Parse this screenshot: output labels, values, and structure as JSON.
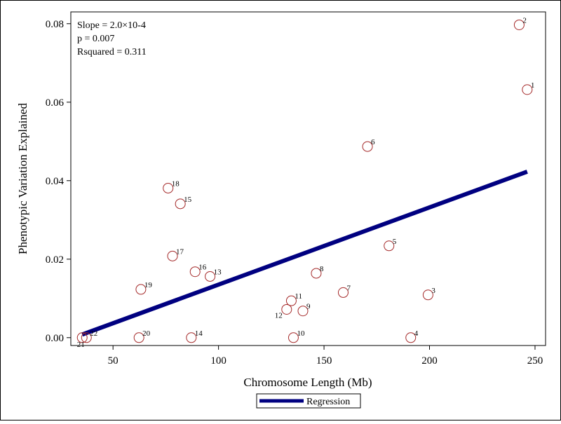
{
  "chart_data": {
    "type": "scatter",
    "xlabel": "Chromosome Length (Mb)",
    "ylabel": "Phenotypic Variation Explained",
    "xlim": [
      30,
      255
    ],
    "ylim": [
      -0.002,
      0.083
    ],
    "xticks": [
      50,
      100,
      150,
      200,
      250
    ],
    "yticks": [
      0.0,
      0.02,
      0.04,
      0.06,
      0.08
    ],
    "ytick_labels": [
      "0.00",
      "0.02",
      "0.04",
      "0.06",
      "0.08"
    ],
    "grid": false,
    "stats_lines": [
      "Slope = 2.0×10-4",
      "p = 0.007",
      "Rsquared = 0.311"
    ],
    "legend": {
      "position": "bottom-center",
      "entries": [
        "Regression"
      ]
    },
    "colors": {
      "points": "#a52a2a",
      "regression": "#000080"
    },
    "points": [
      {
        "label": "1",
        "x": 246.3,
        "y": 0.0632
      },
      {
        "label": "2",
        "x": 242.5,
        "y": 0.0797
      },
      {
        "label": "3",
        "x": 199.3,
        "y": 0.0109
      },
      {
        "label": "4",
        "x": 191.1,
        "y": 0.0
      },
      {
        "label": "5",
        "x": 180.8,
        "y": 0.0234
      },
      {
        "label": "6",
        "x": 170.6,
        "y": 0.0487
      },
      {
        "label": "7",
        "x": 159.1,
        "y": 0.0115
      },
      {
        "label": "8",
        "x": 146.3,
        "y": 0.0164
      },
      {
        "label": "9",
        "x": 140.0,
        "y": 0.0068
      },
      {
        "label": "10",
        "x": 135.5,
        "y": 0.0
      },
      {
        "label": "11",
        "x": 134.5,
        "y": 0.0094
      },
      {
        "label": "12",
        "x": 132.3,
        "y": 0.0072
      },
      {
        "label": "13",
        "x": 96.0,
        "y": 0.0156
      },
      {
        "label": "14",
        "x": 87.1,
        "y": 0.0
      },
      {
        "label": "15",
        "x": 81.9,
        "y": 0.0341
      },
      {
        "label": "16",
        "x": 88.9,
        "y": 0.0168
      },
      {
        "label": "17",
        "x": 78.2,
        "y": 0.0208
      },
      {
        "label": "18",
        "x": 76.1,
        "y": 0.0381
      },
      {
        "label": "19",
        "x": 63.2,
        "y": 0.0123
      },
      {
        "label": "20",
        "x": 62.3,
        "y": 0.0
      },
      {
        "label": "21",
        "x": 35.4,
        "y": 0.0
      },
      {
        "label": "22",
        "x": 37.4,
        "y": 0.0
      }
    ],
    "regression": {
      "name": "Regression",
      "x": [
        35.4,
        246.3
      ],
      "y": [
        0.0008,
        0.0423
      ]
    }
  }
}
